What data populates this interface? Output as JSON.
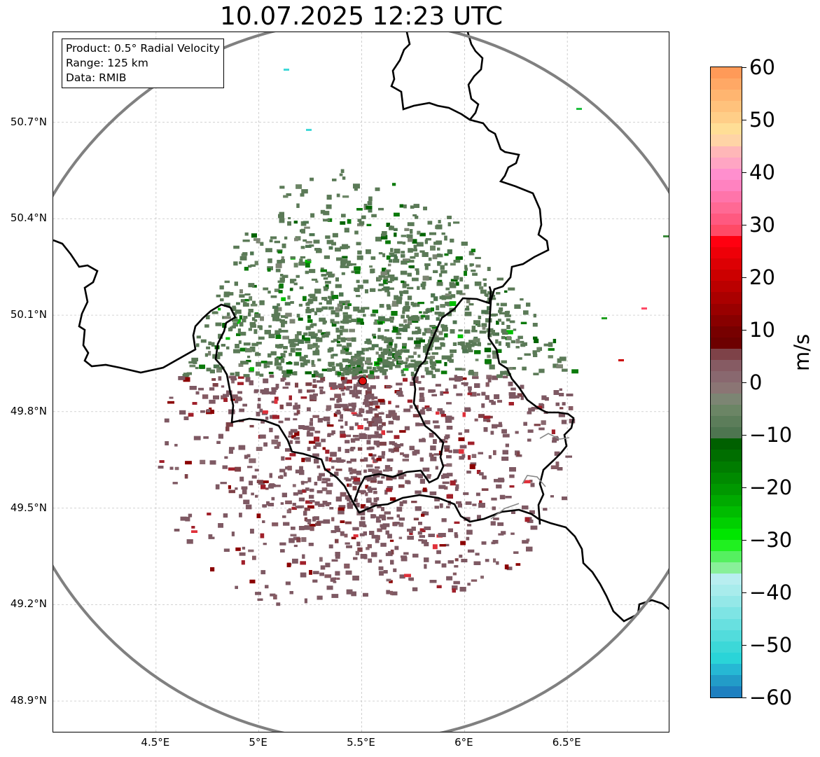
{
  "title": "10.07.2025 12:23 UTC",
  "info_box": {
    "product": "Product: 0.5° Radial Velocity",
    "range": "Range: 125 km",
    "source": "Data: RMIB"
  },
  "axes": {
    "lat_labels": [
      "50.7°N",
      "50.4°N",
      "50.1°N",
      "49.8°N",
      "49.5°N",
      "49.2°N",
      "48.9°N"
    ],
    "lon_labels": [
      "4.5°E",
      "5°E",
      "5.5°E",
      "6°E",
      "6.5°E"
    ],
    "lat_values": [
      50.7,
      50.4,
      50.1,
      49.8,
      49.5,
      49.2,
      48.9
    ],
    "lon_values": [
      4.5,
      5.0,
      5.5,
      6.0,
      6.5
    ],
    "lon_range": [
      4.0,
      7.0
    ],
    "lat_range": [
      48.8,
      50.98
    ],
    "grid": true
  },
  "radar": {
    "site_lon": 5.505,
    "site_lat": 49.915,
    "range_km": 125,
    "site_marker_color": "#e01010",
    "range_ring_color": "#808080"
  },
  "colorbar": {
    "unit": "m/s",
    "min": -60,
    "max": 60,
    "tick_labels": [
      "60",
      "50",
      "40",
      "30",
      "20",
      "10",
      "0",
      "−10",
      "−20",
      "−30",
      "−40",
      "−50",
      "−60"
    ],
    "tick_values": [
      60,
      50,
      40,
      30,
      20,
      10,
      0,
      -10,
      -20,
      -30,
      -40,
      -50,
      -60
    ],
    "colors_top_to_bottom": [
      "#ff9a58",
      "#ffa865",
      "#ffb570",
      "#ffc27c",
      "#ffce88",
      "#ffde96",
      "#ffd4a6",
      "#ffb7b8",
      "#ffa5c3",
      "#ff8fce",
      "#ff82c0",
      "#ff74aa",
      "#ff6994",
      "#ff5980",
      "#ff4a66",
      "#ff0010",
      "#ee0008",
      "#dd0004",
      "#cc0000",
      "#bb0000",
      "#aa0000",
      "#990000",
      "#880000",
      "#770000",
      "#6d0000",
      "#7e4248",
      "#865b63",
      "#89686f",
      "#8b7574",
      "#7c8573",
      "#6b8565",
      "#5c7d5a",
      "#4e7550",
      "#006000",
      "#006e00",
      "#007c00",
      "#008a00",
      "#009800",
      "#00aa00",
      "#00bc00",
      "#00d000",
      "#00e600",
      "#20f020",
      "#55f060",
      "#88f099",
      "#b8eef0",
      "#a8ecec",
      "#94e8e8",
      "#7ee4e4",
      "#68e0e0",
      "#52dcdc",
      "#3cd8d8",
      "#2ad4d8",
      "#26b8d4",
      "#229cc8",
      "#1e80c0"
    ]
  },
  "velocity_field": {
    "approaching_region": "north",
    "receding_region": "south",
    "approaching_color": "#5b7a57",
    "receding_color": "#7e5963"
  }
}
